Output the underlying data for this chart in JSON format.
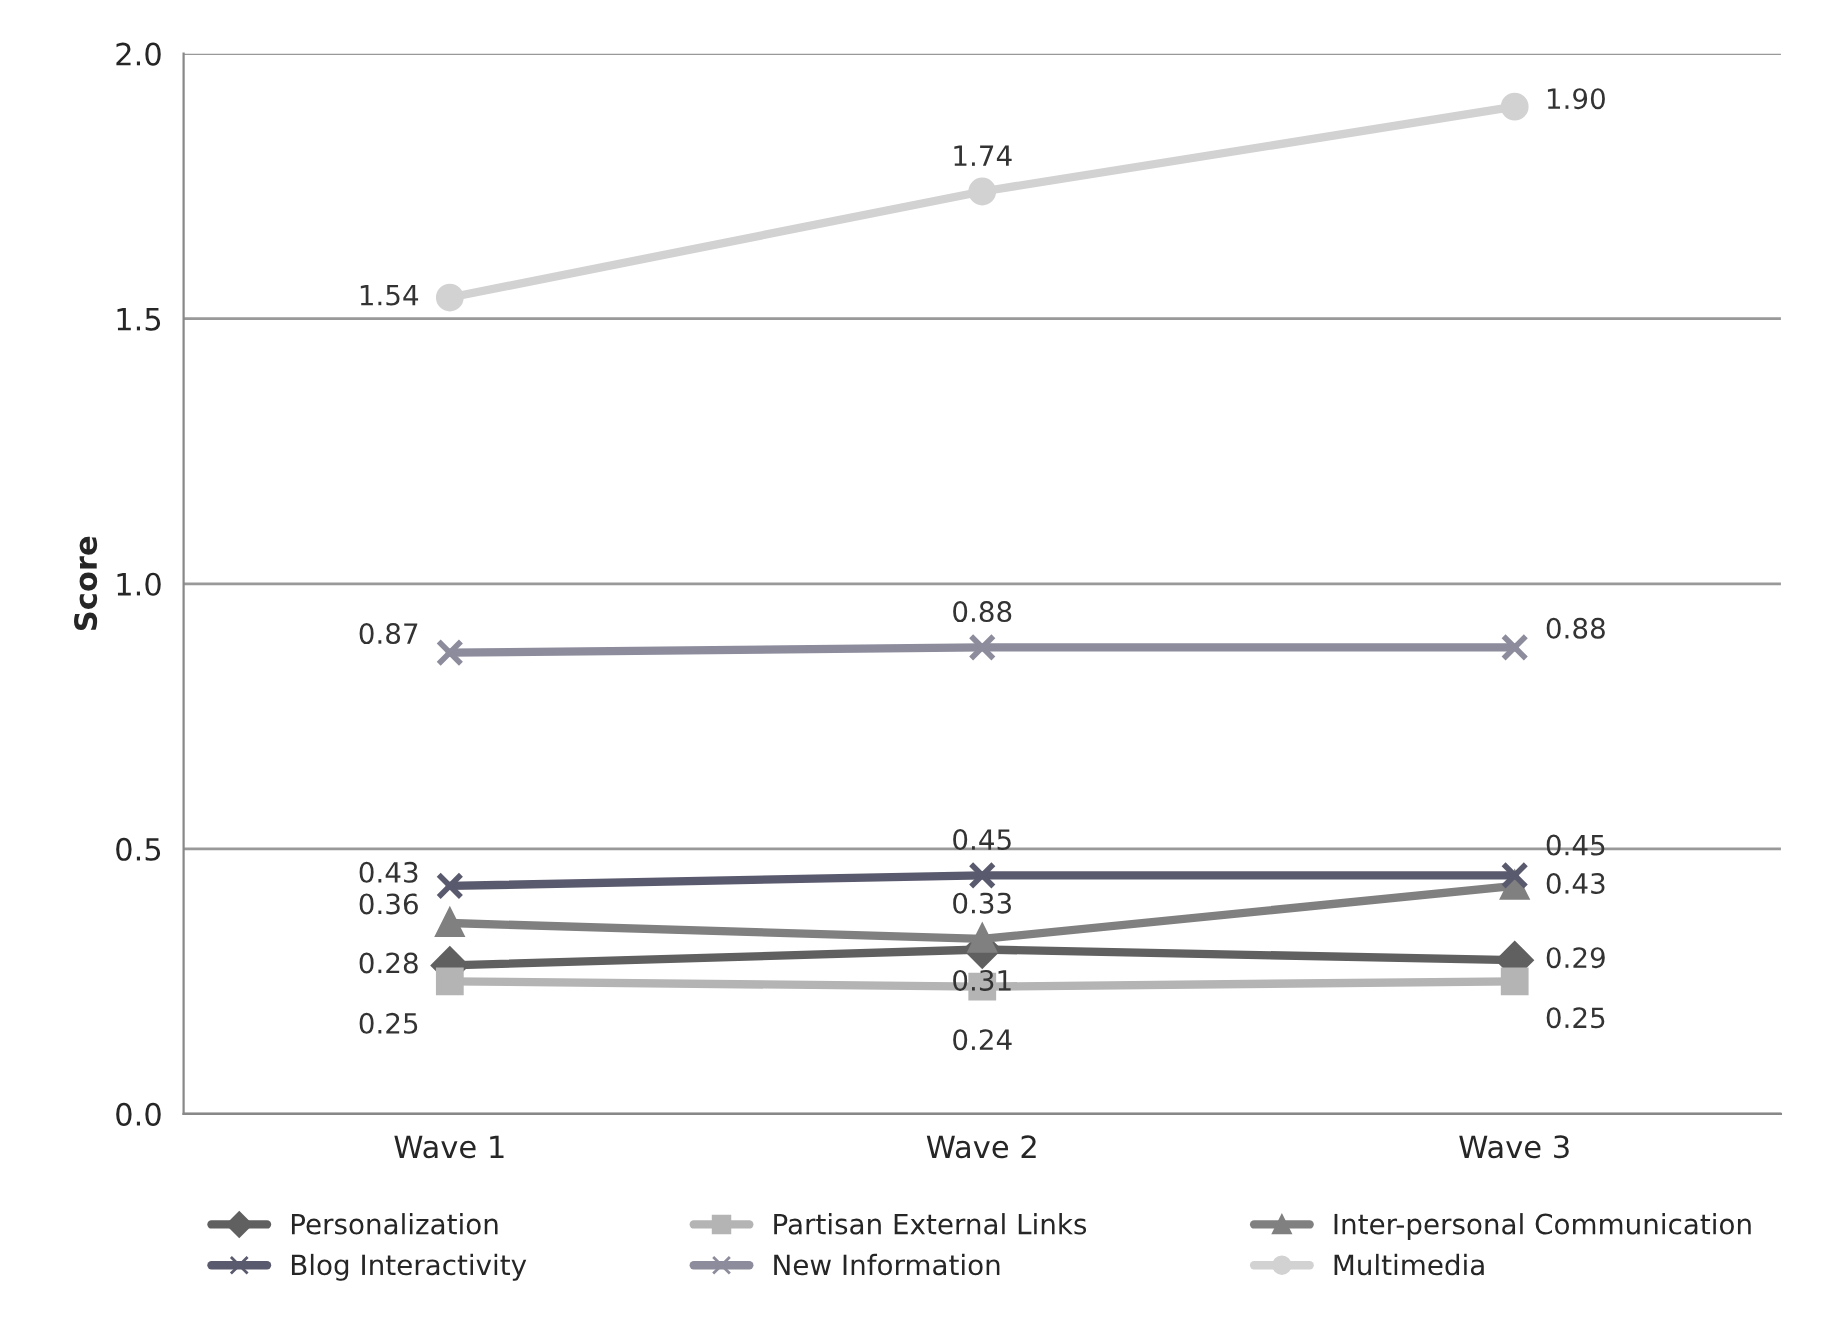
{
  "chart_data": {
    "type": "line",
    "ylabel": "Score",
    "categories": [
      "Wave 1",
      "Wave 2",
      "Wave 3"
    ],
    "series": [
      {
        "name": "Personalization",
        "color": "#606060",
        "marker": "diamond",
        "values": [
          0.28,
          0.31,
          0.29
        ]
      },
      {
        "name": "Partisan External Links",
        "color": "#b4b4b4",
        "marker": "square",
        "values": [
          0.25,
          0.24,
          0.25
        ]
      },
      {
        "name": "Inter-personal Communication",
        "color": "#808080",
        "marker": "triangle",
        "values": [
          0.36,
          0.33,
          0.43
        ]
      },
      {
        "name": "Blog Interactivity",
        "color": "#5a5a6e",
        "marker": "cross",
        "values": [
          0.43,
          0.45,
          0.45
        ]
      },
      {
        "name": "New Information",
        "color": "#8c8c9c",
        "marker": "cross",
        "values": [
          0.87,
          0.88,
          0.88
        ]
      },
      {
        "name": "Multimedia",
        "color": "#d2d2d2",
        "marker": "circle",
        "values": [
          1.54,
          1.74,
          1.9
        ],
        "value_labels": [
          "1.54",
          "1.74",
          "1.90"
        ]
      }
    ],
    "ylim": [
      0,
      2
    ],
    "yticks": [
      {
        "value": 0,
        "label": "0.0"
      },
      {
        "value": 0.5,
        "label": "0.5"
      },
      {
        "value": 1,
        "label": "1.0"
      },
      {
        "value": 1.5,
        "label": "1.5"
      },
      {
        "value": 2,
        "label": "2.0"
      }
    ],
    "grid": "y",
    "legend": "bottom",
    "data_labels": true,
    "line_style": "solid"
  }
}
